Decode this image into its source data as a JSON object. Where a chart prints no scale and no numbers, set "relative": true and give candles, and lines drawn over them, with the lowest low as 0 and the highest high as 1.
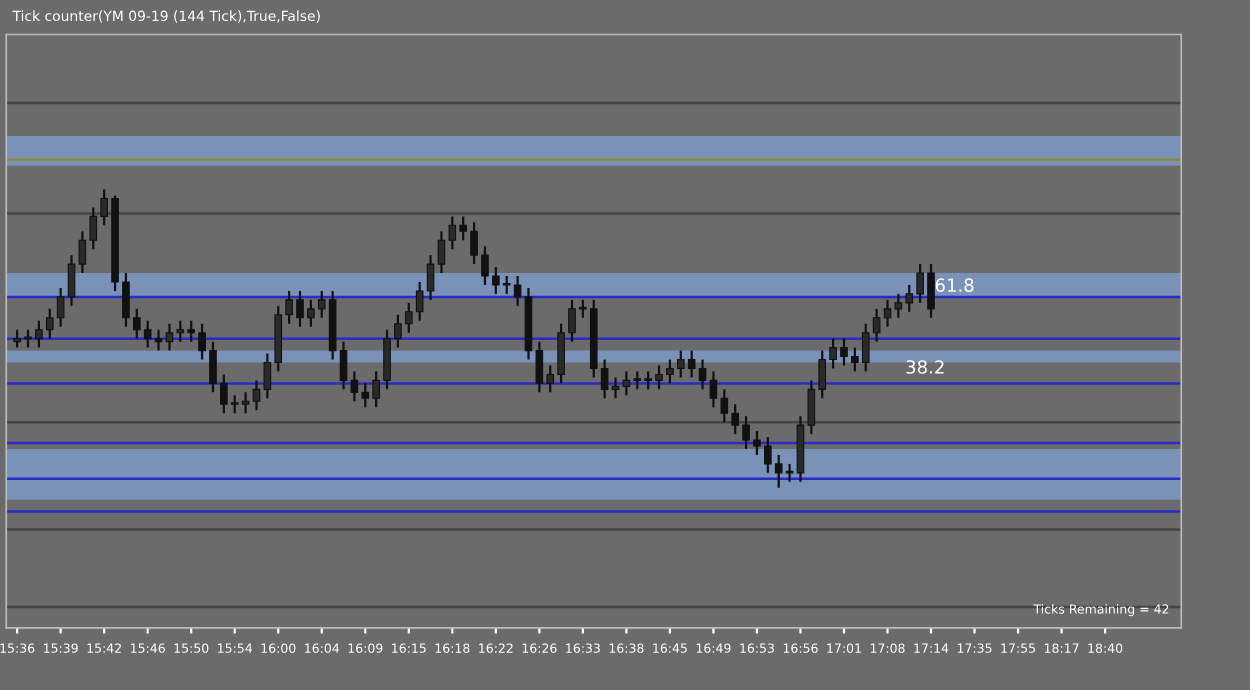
{
  "chart_data": {
    "type": "candlestick",
    "relative": true,
    "title": "Tick counter(YM 09-19 (144 Tick),True,False)",
    "categories": [
      "15:36",
      null,
      null,
      null,
      "15:39",
      null,
      null,
      null,
      "15:42",
      null,
      null,
      null,
      "15:46",
      null,
      null,
      null,
      "15:50",
      null,
      null,
      null,
      "15:54",
      null,
      null,
      null,
      "16:00",
      null,
      null,
      null,
      "16:04",
      null,
      null,
      null,
      "16:09",
      null,
      null,
      null,
      "16:15",
      null,
      null,
      null,
      "16:18",
      null,
      null,
      null,
      "16:22",
      null,
      null,
      null,
      "16:26",
      null,
      null,
      null,
      "16:33",
      null,
      null,
      null,
      "16:38",
      null,
      null,
      null,
      "16:45",
      null,
      null,
      null,
      "16:49",
      null,
      null,
      null,
      "16:53",
      null,
      null,
      null,
      "16:56",
      null,
      null,
      null,
      "17:01",
      null,
      null,
      null,
      "17:08",
      null,
      null,
      null,
      "17:14",
      null,
      null,
      null,
      "17:35",
      null,
      null,
      null,
      "17:55",
      null,
      null,
      null,
      "18:17",
      null,
      null,
      null,
      "18:40",
      null,
      null,
      null,
      null,
      null,
      null
    ],
    "ohlc": [
      [
        0.49,
        0.53,
        0.47,
        0.5
      ],
      [
        0.5,
        0.53,
        0.47,
        0.5
      ],
      [
        0.5,
        0.56,
        0.47,
        0.53
      ],
      [
        0.53,
        0.6,
        0.5,
        0.57
      ],
      [
        0.57,
        0.67,
        0.54,
        0.64
      ],
      [
        0.64,
        0.78,
        0.61,
        0.75
      ],
      [
        0.75,
        0.86,
        0.72,
        0.83
      ],
      [
        0.83,
        0.94,
        0.8,
        0.91
      ],
      [
        0.91,
        1.0,
        0.88,
        0.97
      ],
      [
        0.97,
        0.98,
        0.66,
        0.69
      ],
      [
        0.69,
        0.72,
        0.54,
        0.57
      ],
      [
        0.57,
        0.6,
        0.5,
        0.53
      ],
      [
        0.53,
        0.56,
        0.47,
        0.5
      ],
      [
        0.5,
        0.53,
        0.46,
        0.49
      ],
      [
        0.49,
        0.55,
        0.46,
        0.52
      ],
      [
        0.52,
        0.56,
        0.49,
        0.53
      ],
      [
        0.53,
        0.56,
        0.49,
        0.52
      ],
      [
        0.52,
        0.55,
        0.43,
        0.46
      ],
      [
        0.46,
        0.49,
        0.32,
        0.35
      ],
      [
        0.35,
        0.38,
        0.25,
        0.28
      ],
      [
        0.28,
        0.31,
        0.25,
        0.28
      ],
      [
        0.28,
        0.32,
        0.25,
        0.29
      ],
      [
        0.29,
        0.36,
        0.26,
        0.33
      ],
      [
        0.33,
        0.45,
        0.3,
        0.42
      ],
      [
        0.42,
        0.61,
        0.39,
        0.58
      ],
      [
        0.58,
        0.66,
        0.55,
        0.63
      ],
      [
        0.63,
        0.66,
        0.54,
        0.57
      ],
      [
        0.57,
        0.63,
        0.54,
        0.6
      ],
      [
        0.6,
        0.66,
        0.57,
        0.63
      ],
      [
        0.63,
        0.66,
        0.43,
        0.46
      ],
      [
        0.46,
        0.49,
        0.33,
        0.36
      ],
      [
        0.36,
        0.39,
        0.29,
        0.32
      ],
      [
        0.32,
        0.35,
        0.27,
        0.3
      ],
      [
        0.3,
        0.39,
        0.27,
        0.36
      ],
      [
        0.36,
        0.53,
        0.33,
        0.5
      ],
      [
        0.5,
        0.58,
        0.47,
        0.55
      ],
      [
        0.55,
        0.62,
        0.52,
        0.59
      ],
      [
        0.59,
        0.69,
        0.56,
        0.66
      ],
      [
        0.66,
        0.78,
        0.63,
        0.75
      ],
      [
        0.75,
        0.86,
        0.72,
        0.83
      ],
      [
        0.83,
        0.91,
        0.8,
        0.88
      ],
      [
        0.88,
        0.91,
        0.83,
        0.86
      ],
      [
        0.86,
        0.89,
        0.75,
        0.78
      ],
      [
        0.78,
        0.81,
        0.68,
        0.71
      ],
      [
        0.71,
        0.74,
        0.65,
        0.68
      ],
      [
        0.68,
        0.71,
        0.65,
        0.68
      ],
      [
        0.68,
        0.71,
        0.61,
        0.64
      ],
      [
        0.64,
        0.67,
        0.43,
        0.46
      ],
      [
        0.46,
        0.49,
        0.32,
        0.35
      ],
      [
        0.35,
        0.41,
        0.32,
        0.38
      ],
      [
        0.38,
        0.55,
        0.35,
        0.52
      ],
      [
        0.52,
        0.63,
        0.49,
        0.6
      ],
      [
        0.6,
        0.63,
        0.57,
        0.6
      ],
      [
        0.6,
        0.63,
        0.37,
        0.4
      ],
      [
        0.4,
        0.43,
        0.3,
        0.33
      ],
      [
        0.33,
        0.37,
        0.3,
        0.34
      ],
      [
        0.34,
        0.39,
        0.31,
        0.36
      ],
      [
        0.36,
        0.39,
        0.33,
        0.36
      ],
      [
        0.36,
        0.39,
        0.33,
        0.36
      ],
      [
        0.36,
        0.41,
        0.33,
        0.38
      ],
      [
        0.38,
        0.43,
        0.35,
        0.4
      ],
      [
        0.4,
        0.46,
        0.37,
        0.43
      ],
      [
        0.43,
        0.46,
        0.37,
        0.4
      ],
      [
        0.4,
        0.43,
        0.33,
        0.36
      ],
      [
        0.36,
        0.39,
        0.27,
        0.3
      ],
      [
        0.3,
        0.33,
        0.22,
        0.25
      ],
      [
        0.25,
        0.28,
        0.18,
        0.21
      ],
      [
        0.21,
        0.24,
        0.13,
        0.16
      ],
      [
        0.16,
        0.19,
        0.11,
        0.14
      ],
      [
        0.14,
        0.17,
        0.05,
        0.08
      ],
      [
        0.08,
        0.11,
        0.0,
        0.05
      ],
      [
        0.05,
        0.08,
        0.02,
        0.05
      ],
      [
        0.05,
        0.24,
        0.02,
        0.21
      ],
      [
        0.21,
        0.36,
        0.18,
        0.33
      ],
      [
        0.33,
        0.46,
        0.3,
        0.43
      ],
      [
        0.43,
        0.5,
        0.4,
        0.47
      ],
      [
        0.47,
        0.5,
        0.41,
        0.44
      ],
      [
        0.44,
        0.47,
        0.39,
        0.42
      ],
      [
        0.42,
        0.55,
        0.39,
        0.52
      ],
      [
        0.52,
        0.6,
        0.49,
        0.57
      ],
      [
        0.57,
        0.63,
        0.54,
        0.6
      ],
      [
        0.6,
        0.65,
        0.57,
        0.62
      ],
      [
        0.62,
        0.68,
        0.59,
        0.65
      ],
      [
        0.65,
        0.75,
        0.62,
        0.72
      ],
      [
        0.72,
        0.75,
        0.57,
        0.6
      ],
      null,
      null,
      null,
      null,
      null,
      null,
      null,
      null,
      null,
      null,
      null,
      null,
      null,
      null,
      null,
      null,
      null,
      null,
      null,
      null,
      null,
      null
    ],
    "ref_lines": [
      {
        "axis": "y",
        "value": 1.29,
        "color": "#444444"
      },
      {
        "axis": "y",
        "value": 1.1,
        "color": "#8a8a3a"
      },
      {
        "axis": "y",
        "value": 0.92,
        "color": "#444444"
      },
      {
        "axis": "y",
        "value": 0.64,
        "color": "#2a2ac8"
      },
      {
        "axis": "y",
        "value": 0.5,
        "color": "#2a2ac8"
      },
      {
        "axis": "y",
        "value": 0.35,
        "color": "#2a2ac8"
      },
      {
        "axis": "y",
        "value": 0.22,
        "color": "#444444"
      },
      {
        "axis": "y",
        "value": 0.15,
        "color": "#2a2ac8"
      },
      {
        "axis": "y",
        "value": 0.03,
        "color": "#2a2ac8"
      },
      {
        "axis": "y",
        "value": -0.08,
        "color": "#2a2ac8"
      },
      {
        "axis": "y",
        "value": -0.14,
        "color": "#444444"
      },
      {
        "axis": "y",
        "value": -0.4,
        "color": "#444444"
      }
    ],
    "bands": [
      {
        "axis": "y",
        "from": 1.08,
        "to": 1.18,
        "color": "#7f9fd0"
      },
      {
        "axis": "y",
        "from": 0.64,
        "to": 0.72,
        "color": "#7f9fd0"
      },
      {
        "axis": "y",
        "from": 0.42,
        "to": 0.46,
        "color": "#7f9fd0"
      },
      {
        "axis": "y",
        "from": -0.04,
        "to": 0.13,
        "color": "#7f9fd0"
      }
    ],
    "annotations": [
      "61.8",
      "38.2",
      "Ticks Remaining = 42"
    ]
  }
}
